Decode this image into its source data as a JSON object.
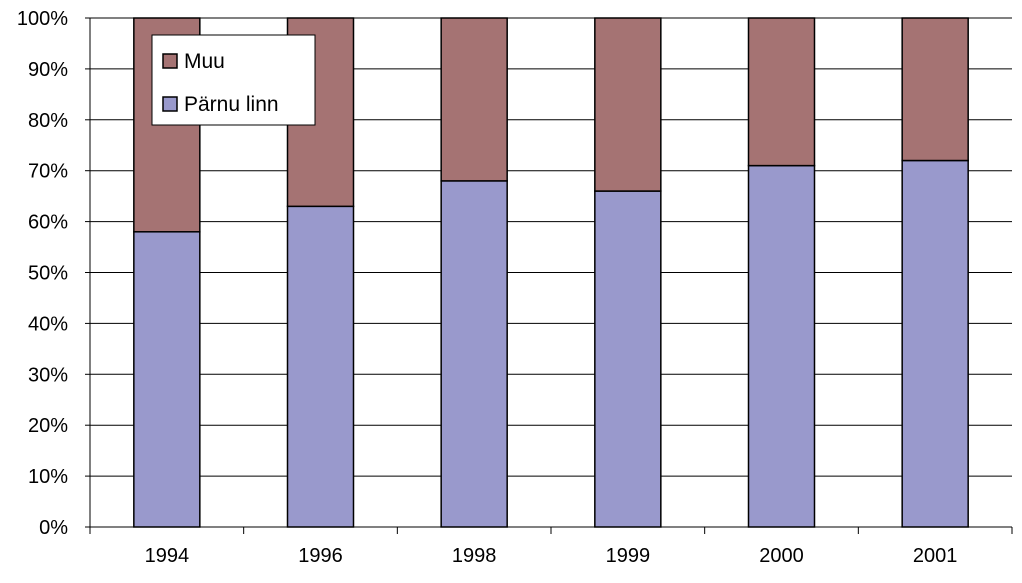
{
  "chart_data": {
    "type": "bar",
    "stacked": true,
    "percent": true,
    "categories": [
      "1994",
      "1996",
      "1998",
      "1999",
      "2000",
      "2001"
    ],
    "series": [
      {
        "name": "Pärnu linn",
        "values": [
          58,
          63,
          68,
          66,
          71,
          72
        ],
        "color": "#9999cc"
      },
      {
        "name": "Muu",
        "values": [
          42,
          37,
          32,
          34,
          29,
          28
        ],
        "color": "#a57373"
      }
    ],
    "ylim": [
      0,
      100
    ],
    "yticks": [
      "0%",
      "10%",
      "20%",
      "30%",
      "40%",
      "50%",
      "60%",
      "70%",
      "80%",
      "90%",
      "100%"
    ],
    "grid": true,
    "legend": {
      "position": "top-left",
      "entries": [
        "Muu",
        "Pärnu linn"
      ]
    }
  }
}
